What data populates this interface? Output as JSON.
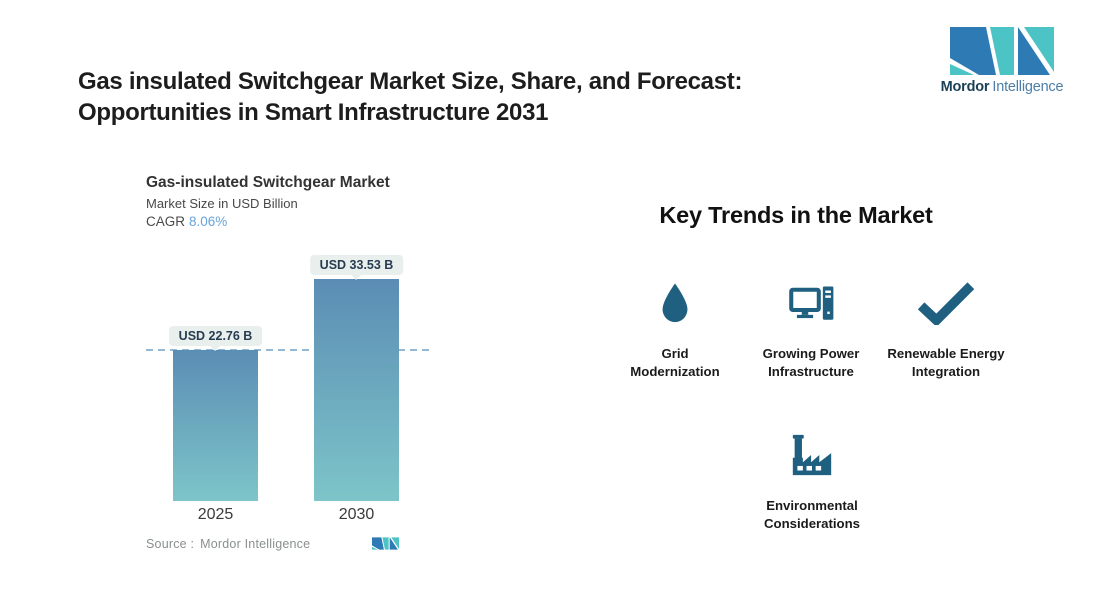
{
  "header": {
    "title_line1": "Gas insulated Switchgear Market Size, Share, and Forecast:",
    "title_line2": "Opportunities in Smart Infrastructure 2031",
    "brand": {
      "name_bold": "Mordor",
      "name_light": "Intelligence"
    }
  },
  "chart": {
    "title": "Gas-insulated Switchgear Market",
    "subtitle": "Market Size in USD Billion",
    "cagr_label": "CAGR",
    "cagr_value": "8.06%",
    "source_label": "Source :",
    "source_value": "Mordor Intelligence"
  },
  "chart_data": {
    "type": "bar",
    "title": "Gas-insulated Switchgear Market",
    "subtitle": "Market Size in USD Billion",
    "unit": "USD Billion",
    "cagr": "8.06%",
    "categories": [
      "2025",
      "2030"
    ],
    "values": [
      22.76,
      33.53
    ],
    "bar_labels": [
      "USD 22.76 B",
      "USD 33.53 B"
    ],
    "reference_line_value": 22.76,
    "legend": false,
    "gridlines": false,
    "bar_gradient_top": "#5b8db4",
    "bar_gradient_bottom": "#7dc5c9"
  },
  "key_trends": {
    "title": "Key Trends in the Market",
    "items": [
      {
        "icon": "water-drop-icon",
        "line1": "Grid",
        "line2": "Modernization"
      },
      {
        "icon": "computer-icon",
        "line1": "Growing Power",
        "line2": "Infrastructure"
      },
      {
        "icon": "checkmark-icon",
        "line1": "Renewable Energy",
        "line2": "Integration"
      },
      {
        "icon": "factory-icon",
        "line1": "Environmental",
        "line2": "Considerations"
      }
    ]
  },
  "colors": {
    "brand_teal": "#4cc4c6",
    "brand_blue": "#2d7ab4",
    "icon_dark_teal": "#1f5f7f",
    "cagr_blue": "#68a3da",
    "dashed_line": "#94b7d3",
    "label_pill_bg": "#e9efec",
    "pill_text": "#273c52"
  }
}
